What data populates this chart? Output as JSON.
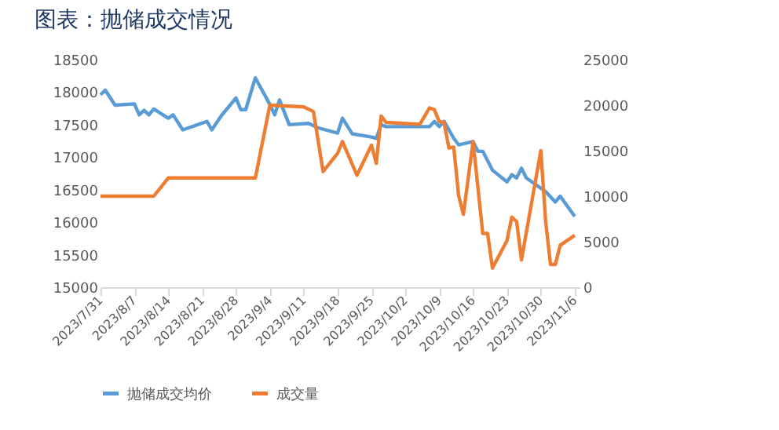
{
  "chart_data": {
    "type": "line",
    "title": "图表：抛储成交情况",
    "series": [
      {
        "name": "抛储成交均价",
        "color": "#5b9bd5",
        "x": [
          "2023-07-31",
          "2023-08-01",
          "2023-08-03",
          "2023-08-07",
          "2023-08-08",
          "2023-08-09",
          "2023-08-10",
          "2023-08-11",
          "2023-08-14",
          "2023-08-15",
          "2023-08-17",
          "2023-08-22",
          "2023-08-23",
          "2023-08-25",
          "2023-08-28",
          "2023-08-29",
          "2023-08-30",
          "2023-09-01",
          "2023-09-04",
          "2023-09-05",
          "2023-09-06",
          "2023-09-08",
          "2023-09-12",
          "2023-09-14",
          "2023-09-18",
          "2023-09-19",
          "2023-09-21",
          "2023-09-25",
          "2023-09-26",
          "2023-09-27",
          "2023-09-28",
          "2023-10-07",
          "2023-10-08",
          "2023-10-09",
          "2023-10-10",
          "2023-10-12",
          "2023-10-13",
          "2023-10-16",
          "2023-10-17",
          "2023-10-18",
          "2023-10-20",
          "2023-10-23",
          "2023-10-24",
          "2023-10-25",
          "2023-10-26",
          "2023-10-27",
          "2023-10-31",
          "2023-11-02",
          "2023-11-03",
          "2023-11-06"
        ],
        "values": [
          17960,
          18030,
          17800,
          17820,
          17650,
          17720,
          17650,
          17740,
          17600,
          17650,
          17420,
          17550,
          17420,
          17640,
          17910,
          17730,
          17730,
          18220,
          17810,
          17650,
          17880,
          17500,
          17520,
          17450,
          17370,
          17600,
          17360,
          17310,
          17290,
          17500,
          17470,
          17470,
          17550,
          17470,
          17550,
          17290,
          17190,
          17240,
          17090,
          17090,
          16800,
          16620,
          16730,
          16680,
          16830,
          16680,
          16470,
          16310,
          16400,
          16090
        ]
      },
      {
        "name": "成交量",
        "color": "#ed7d31",
        "axis": "y2",
        "x": [
          "2023-07-31",
          "2023-08-11",
          "2023-08-14",
          "2023-09-01",
          "2023-09-04",
          "2023-09-11",
          "2023-09-13",
          "2023-09-15",
          "2023-09-18",
          "2023-09-19",
          "2023-09-22",
          "2023-09-25",
          "2023-09-26",
          "2023-09-27",
          "2023-09-28",
          "2023-10-05",
          "2023-10-07",
          "2023-10-08",
          "2023-10-09",
          "2023-10-10",
          "2023-10-11",
          "2023-10-12",
          "2023-10-13",
          "2023-10-14",
          "2023-10-16",
          "2023-10-18",
          "2023-10-19",
          "2023-10-20",
          "2023-10-23",
          "2023-10-24",
          "2023-10-25",
          "2023-10-26",
          "2023-10-30",
          "2023-10-31",
          "2023-11-01",
          "2023-11-02",
          "2023-11-03",
          "2023-11-06"
        ],
        "values": [
          10000,
          10000,
          12000,
          12000,
          20000,
          19800,
          19300,
          12700,
          14700,
          16000,
          12300,
          15600,
          13600,
          18800,
          18100,
          17900,
          19700,
          19500,
          18200,
          18100,
          15300,
          15400,
          10100,
          8000,
          16000,
          5900,
          5900,
          2100,
          5100,
          7700,
          7200,
          3000,
          15000,
          7200,
          2500,
          2500,
          4600,
          5700
        ]
      }
    ],
    "xlim": [
      "2023-07-31",
      "2023-11-07"
    ],
    "xticks": [
      {
        "value": "2023-07-31",
        "label": "2023/7/31"
      },
      {
        "value": "2023-08-07",
        "label": "2023/8/7"
      },
      {
        "value": "2023-08-14",
        "label": "2023/8/14"
      },
      {
        "value": "2023-08-21",
        "label": "2023/8/21"
      },
      {
        "value": "2023-08-28",
        "label": "2023/8/28"
      },
      {
        "value": "2023-09-04",
        "label": "2023/9/4"
      },
      {
        "value": "2023-09-11",
        "label": "2023/9/11"
      },
      {
        "value": "2023-09-18",
        "label": "2023/9/18"
      },
      {
        "value": "2023-09-25",
        "label": "2023/9/25"
      },
      {
        "value": "2023-10-02",
        "label": "2023/10/2"
      },
      {
        "value": "2023-10-09",
        "label": "2023/10/9"
      },
      {
        "value": "2023-10-16",
        "label": "2023/10/16"
      },
      {
        "value": "2023-10-23",
        "label": "2023/10/23"
      },
      {
        "value": "2023-10-30",
        "label": "2023/10/30"
      },
      {
        "value": "2023-11-06",
        "label": "2023/11/6"
      }
    ],
    "ylim": [
      15000,
      18500
    ],
    "yticks": [
      15000,
      15500,
      16000,
      16500,
      17000,
      17500,
      18000,
      18500
    ],
    "y2lim": [
      0,
      25000
    ],
    "y2ticks": [
      0,
      5000,
      10000,
      15000,
      20000,
      25000
    ],
    "legend": "bottom",
    "grid": false,
    "line_style": "solid"
  }
}
